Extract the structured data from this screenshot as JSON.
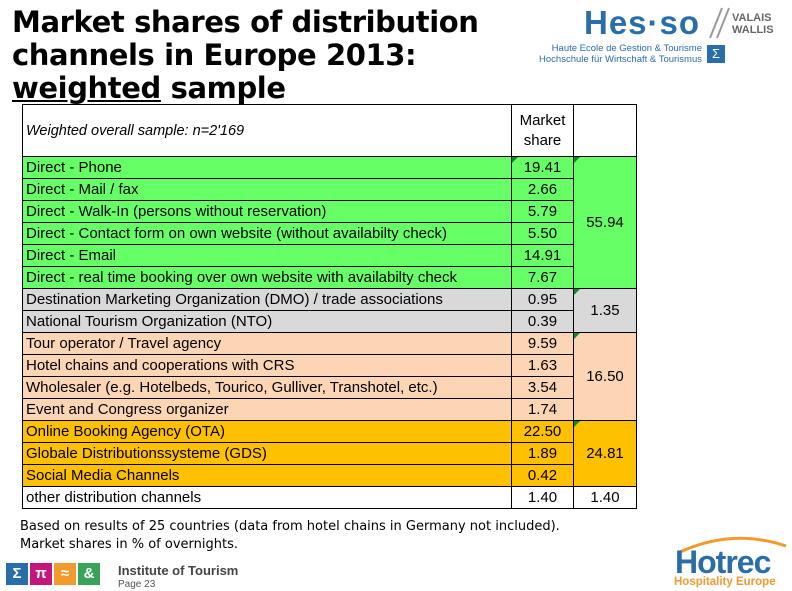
{
  "title": {
    "line1": "Market shares of distribution",
    "line2": "channels in Europe 2013:",
    "line3_underlined": "weighted",
    "line3_rest": " sample"
  },
  "logo_hes": {
    "word": "Hes·so",
    "region_line1": "VALAIS",
    "region_line2": "WALLIS",
    "sub_line1": "Haute Ecole de Gestion & Tourisme",
    "sub_line2": "Hochschule für Wirtschaft & Tourismus",
    "sigma": "Σ",
    "color": "#2a6ea9"
  },
  "table": {
    "header_label": "Weighted overall sample: n=2'169",
    "header_share_line1": "Market",
    "header_share_line2": "share",
    "groups": [
      {
        "class": "g-direct",
        "total": "55.94",
        "color": "#66ff66",
        "rows": [
          {
            "label": "Direct - Phone",
            "value": "19.41"
          },
          {
            "label": "Direct - Mail / fax",
            "value": "2.66"
          },
          {
            "label": "Direct - Walk-In (persons without reservation)",
            "value": "5.79"
          },
          {
            "label": "Direct - Contact form on own website (without availabilty check)",
            "value": "5.50"
          },
          {
            "label": "Direct - Email",
            "value": "14.91"
          },
          {
            "label": "Direct - real time booking over own website with availabilty check",
            "value": "7.67"
          }
        ]
      },
      {
        "class": "g-dmo",
        "total": "1.35",
        "color": "#d9d9d9",
        "rows": [
          {
            "label": "Destination Marketing Organization (DMO) / trade associations",
            "value": "0.95"
          },
          {
            "label": "National Tourism Organization (NTO)",
            "value": "0.39"
          }
        ]
      },
      {
        "class": "g-tour",
        "total": "16.50",
        "color": "#fcd5b4",
        "rows": [
          {
            "label": "Tour operator / Travel agency",
            "value": "9.59"
          },
          {
            "label": "Hotel chains and cooperations with CRS",
            "value": "1.63"
          },
          {
            "label": "Wholesaler (e.g. Hotelbeds, Tourico, Gulliver, Transhotel, etc.)",
            "value": "3.54"
          },
          {
            "label": "Event and Congress organizer",
            "value": "1.74"
          }
        ]
      },
      {
        "class": "g-online",
        "total": "24.81",
        "color": "#ffc000",
        "rows": [
          {
            "label": "Online Booking Agency (OTA)",
            "value": "22.50"
          },
          {
            "label": "Globale Distributionssysteme (GDS)",
            "value": "1.89"
          },
          {
            "label": "Social Media Channels",
            "value": "0.42"
          }
        ]
      },
      {
        "class": "g-other",
        "total": "1.40",
        "color": "#ffffff",
        "rows": [
          {
            "label": "other distribution channels",
            "value": "1.40"
          }
        ]
      }
    ]
  },
  "footnote": "Based on results of 25 countries (data from hotel chains in Germany not included).  Market shares in % of overnights.",
  "institute": {
    "icons": [
      {
        "glyph": "Σ",
        "color": "#2a6ea9",
        "name": "sigma-icon"
      },
      {
        "glyph": "π",
        "color": "#c4167d",
        "name": "pi-icon"
      },
      {
        "glyph": "≈",
        "color": "#f29a2e",
        "name": "approx-icon"
      },
      {
        "glyph": "&",
        "color": "#3aa35a",
        "name": "ampersand-icon"
      }
    ],
    "name": "Institute of Tourism",
    "page": "Page 23"
  },
  "logo_hotrec": {
    "word": "Hotrec",
    "sub": "Hospitality Europe"
  }
}
